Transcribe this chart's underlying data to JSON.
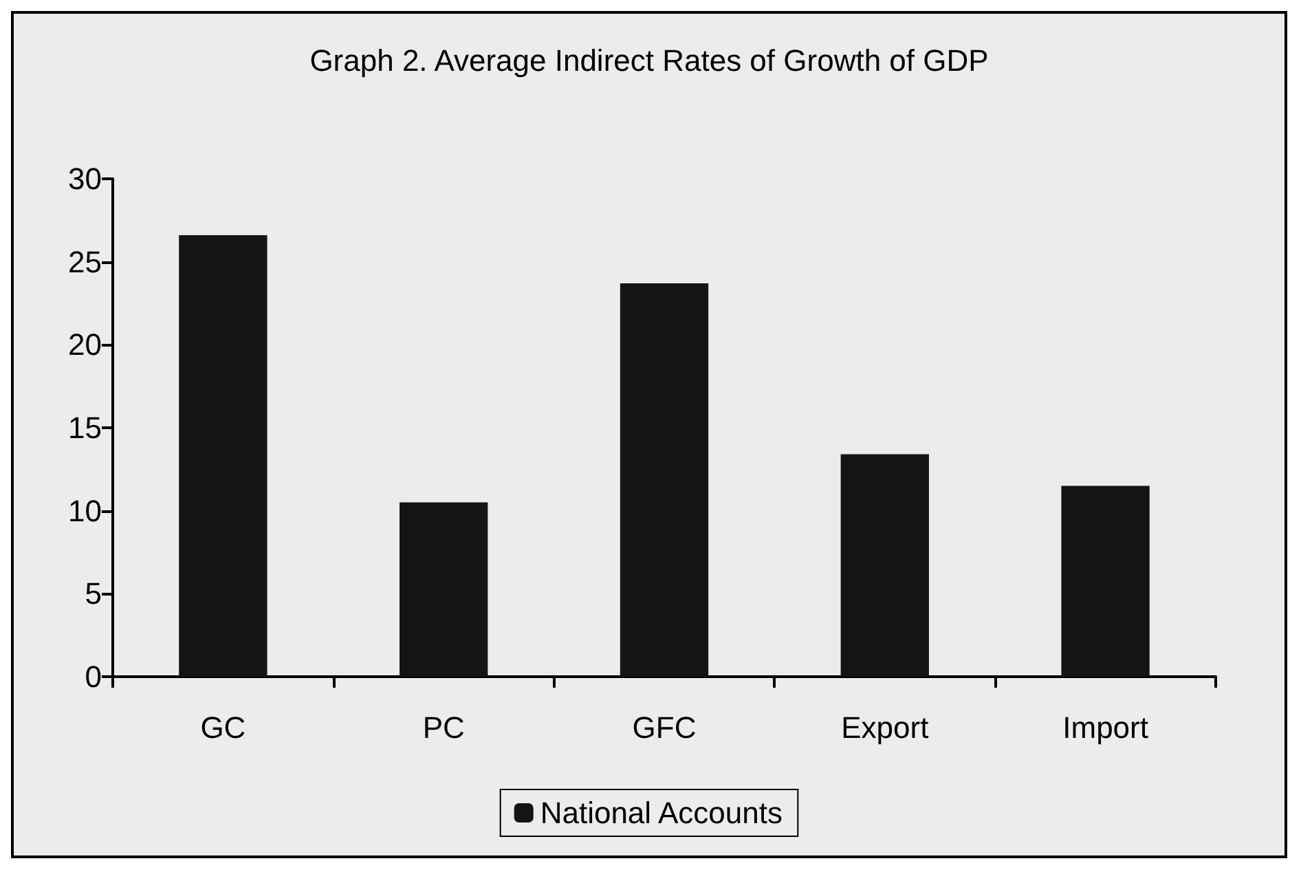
{
  "chart_data": {
    "type": "bar",
    "title": "Graph 2. Average Indirect Rates of Growth of GDP",
    "categories": [
      "GC",
      "PC",
      "GFC",
      "Export",
      "Import"
    ],
    "series": [
      {
        "name": "National Accounts",
        "color": "#141414",
        "values": [
          26.6,
          10.5,
          23.7,
          13.4,
          11.5
        ]
      }
    ],
    "ylim": [
      0,
      30
    ],
    "yticks": [
      0,
      5,
      10,
      15,
      20,
      25,
      30
    ],
    "grid": false,
    "legend": "bottom"
  }
}
